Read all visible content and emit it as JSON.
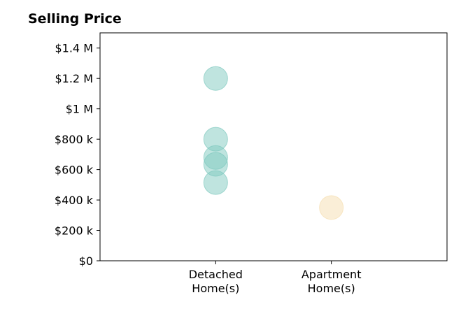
{
  "chart_data": {
    "type": "scatter",
    "title": "Selling Price",
    "categories": [
      "Detached\nHome(s)",
      "Apartment\nHome(s)"
    ],
    "y_ticks": [
      {
        "value": 0,
        "label": "$0"
      },
      {
        "value": 200000,
        "label": "$200 k"
      },
      {
        "value": 400000,
        "label": "$400 k"
      },
      {
        "value": 600000,
        "label": "$600 k"
      },
      {
        "value": 800000,
        "label": "$800 k"
      },
      {
        "value": 1000000,
        "label": "$1 M"
      },
      {
        "value": 1200000,
        "label": "$1.2 M"
      },
      {
        "value": 1400000,
        "label": "$1.4 M"
      }
    ],
    "ylim": [
      0,
      1500000
    ],
    "xlim": [
      -1,
      2
    ],
    "grid": false,
    "series": [
      {
        "category": "Detached\nHome(s)",
        "color": "#7fc9bf",
        "values": [
          1200000,
          800000,
          680000,
          635000,
          515000
        ]
      },
      {
        "category": "Apartment\nHome(s)",
        "color": "#f5deb0",
        "values": [
          350000
        ]
      }
    ]
  }
}
